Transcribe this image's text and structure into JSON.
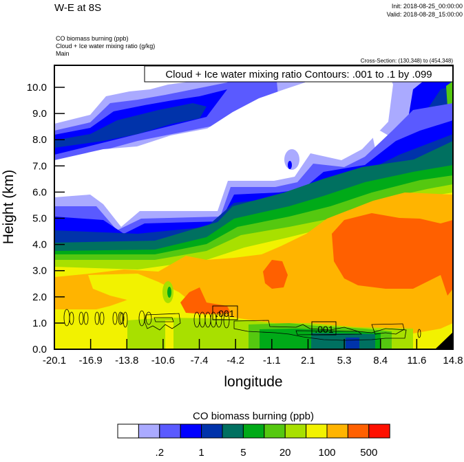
{
  "header": {
    "title": "W-E at 8S",
    "init": "Init: 2018-08-25_00:00:00",
    "valid": "Valid: 2018-08-28_15:00:00",
    "fields": [
      "CO biomass burning   (ppb)",
      "Cloud + Ice water mixing ratio   (g/kg)",
      "Main"
    ],
    "cross_section": "Cross-Section: (130,348) to (454,348)"
  },
  "chart_data": {
    "type": "heatmap",
    "title": "W-E at 8S",
    "xlabel": "longitude",
    "ylabel": "Height (km)",
    "x_ticks": [
      "-20.1",
      "-16.9",
      "-13.8",
      "-10.6",
      "-7.4",
      "-4.2",
      "-1.1",
      "2.1",
      "5.3",
      "8.4",
      "11.6",
      "14.8"
    ],
    "y_ticks": [
      "0.0",
      "1.0",
      "2.0",
      "3.0",
      "4.0",
      "5.0",
      "6.0",
      "7.0",
      "8.0",
      "9.0",
      "10.0"
    ],
    "xlim": [
      -20.1,
      14.8
    ],
    "ylim": [
      0,
      10.8
    ],
    "contour_legend": "Cloud + Ice water mixing ratio Contours: .001 to .1 by .099",
    "contour_labels": [
      ".001",
      ".001"
    ],
    "colorbar": {
      "title": "CO biomass burning  (ppb)",
      "colors": [
        "#ffffff",
        "#aaaaff",
        "#5a5aff",
        "#0000ff",
        "#0033aa",
        "#007060",
        "#00aa18",
        "#55c810",
        "#a8e000",
        "#f2f200",
        "#ffb400",
        "#ff6000",
        "#ff1000"
      ],
      "labels": [
        ".2",
        "1",
        "5",
        "20",
        "100",
        "500"
      ],
      "label_boundaries": [
        2,
        4,
        6,
        8,
        10,
        12
      ]
    }
  }
}
